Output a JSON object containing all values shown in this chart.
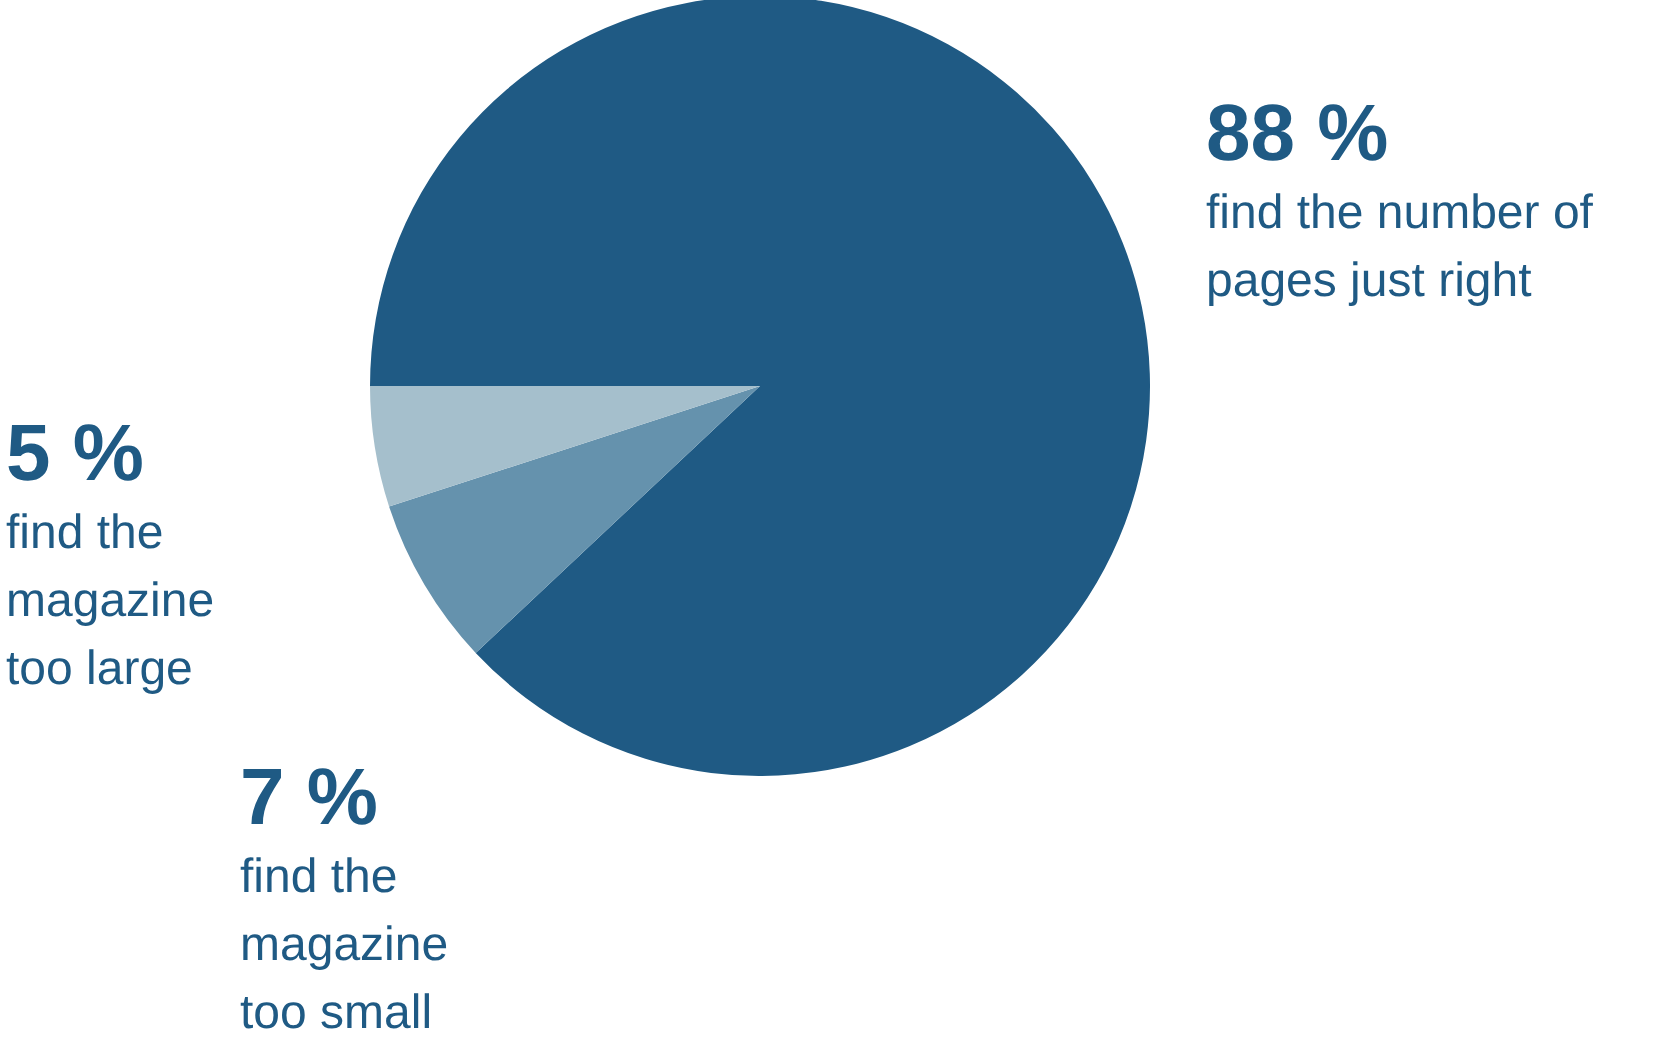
{
  "chart_data": {
    "type": "pie",
    "categories": [
      "find the number of pages just right",
      "find the magazine too small",
      "find the magazine too large"
    ],
    "values": [
      88,
      7,
      5
    ],
    "colors": [
      "#1f5a84",
      "#6592ad",
      "#a5bfcc"
    ],
    "value_labels": [
      "88 %",
      "7 %",
      "5 %"
    ]
  }
}
